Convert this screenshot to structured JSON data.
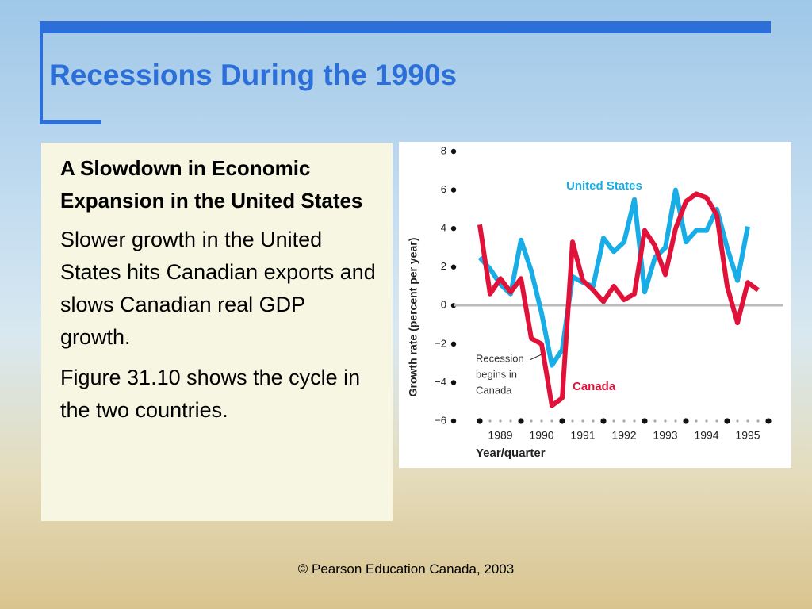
{
  "title": "Recessions During the 1990s",
  "text_box": {
    "heading": "A Slowdown in Economic Expansion in the United States",
    "paragraphs": [
      "Slower growth in the United States hits Canadian exports and slows Canadian real GDP growth.",
      "Figure 31.10 shows the cycle in the two countries."
    ]
  },
  "footer": "© Pearson Education Canada, 2003",
  "chart_data": {
    "type": "line",
    "y_label": "Growth rate (percent per year)",
    "x_label": "Year/quarter",
    "categories": [
      null,
      null,
      "1989",
      null,
      null,
      null,
      "1990",
      null,
      null,
      null,
      "1991",
      null,
      null,
      null,
      "1992",
      null,
      null,
      null,
      "1993",
      null,
      null,
      null,
      "1994",
      null,
      null,
      null,
      "1995",
      null
    ],
    "ylim": [
      -6,
      8
    ],
    "yticks": [
      {
        "value": -6,
        "label": "−6"
      },
      {
        "value": -4,
        "label": "−4"
      },
      {
        "value": -2,
        "label": "−2"
      },
      0,
      2,
      4,
      6,
      8
    ],
    "series": [
      {
        "name": "United States",
        "color": "#18ade6",
        "values": [
          2.5,
          1.9,
          1.1,
          0.6,
          3.4,
          1.8,
          -0.4,
          -3.1,
          -2.3,
          1.5,
          1.2,
          1.0,
          3.5,
          2.8,
          3.3,
          5.5,
          0.7,
          2.5,
          3.0,
          6.0,
          3.3,
          3.9,
          3.9,
          5.0,
          3.0,
          1.3,
          4.1,
          null
        ]
      },
      {
        "name": "Canada",
        "color": "#e0123a",
        "values": [
          4.2,
          0.6,
          1.4,
          0.7,
          1.4,
          -1.7,
          -2.0,
          -5.2,
          -4.8,
          3.3,
          1.3,
          0.8,
          0.2,
          1.0,
          0.3,
          0.6,
          3.9,
          3.1,
          1.6,
          4.0,
          5.4,
          5.8,
          5.6,
          4.7,
          1.0,
          -0.9,
          1.2,
          0.8
        ]
      }
    ],
    "annotation": [
      "Recession",
      "begins in",
      "Canada"
    ]
  }
}
